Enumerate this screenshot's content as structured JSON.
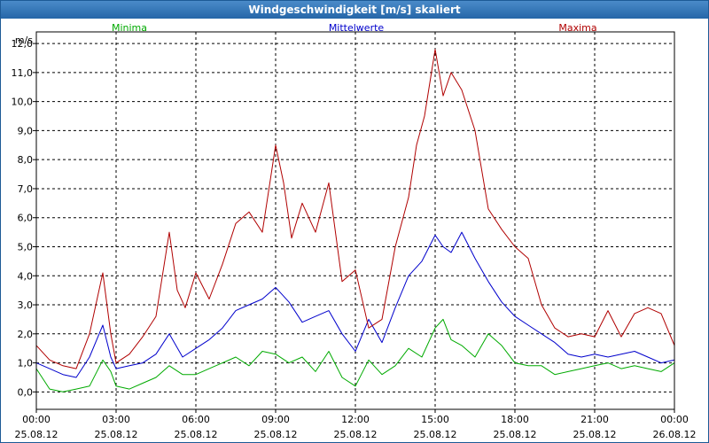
{
  "chart_data": {
    "type": "line",
    "title": "Windgeschwindigkeit [m/s] skaliert",
    "ylabel": "m/s",
    "xlabel": "",
    "ylim": [
      -0.6,
      12.4
    ],
    "xlim": [
      0,
      24
    ],
    "yticks": [
      0,
      1,
      2,
      3,
      4,
      5,
      6,
      7,
      8,
      9,
      10,
      11,
      12
    ],
    "ytick_labels": [
      "0,0",
      "1,0",
      "2,0",
      "3,0",
      "4,0",
      "5,0",
      "6,0",
      "7,0",
      "8,0",
      "9,0",
      "10,0",
      "11,0",
      "12,0"
    ],
    "xticks": [
      0,
      3,
      6,
      9,
      12,
      15,
      18,
      21,
      24
    ],
    "xtick_labels": [
      {
        "time": "00:00",
        "date": "25.08.12"
      },
      {
        "time": "03:00",
        "date": "25.08.12"
      },
      {
        "time": "06:00",
        "date": "25.08.12"
      },
      {
        "time": "09:00",
        "date": "25.08.12"
      },
      {
        "time": "12:00",
        "date": "25.08.12"
      },
      {
        "time": "15:00",
        "date": "25.08.12"
      },
      {
        "time": "18:00",
        "date": "25.08.12"
      },
      {
        "time": "21:00",
        "date": "25.08.12"
      },
      {
        "time": "00:00",
        "date": "26.08.12"
      }
    ],
    "grid": true,
    "legend_position": "top",
    "series": [
      {
        "name": "Minima",
        "color": "#00aa00",
        "x": [
          0,
          0.5,
          1,
          1.5,
          2,
          2.5,
          2.8,
          3,
          3.5,
          4,
          4.5,
          5,
          5.5,
          6,
          6.5,
          7,
          7.5,
          8,
          8.5,
          9,
          9.5,
          10,
          10.5,
          11,
          11.5,
          12,
          12.5,
          13,
          13.5,
          14,
          14.5,
          15,
          15.3,
          15.6,
          16,
          16.5,
          17,
          17.5,
          18,
          18.5,
          19,
          19.5,
          20,
          20.5,
          21,
          21.5,
          22,
          22.5,
          23,
          23.5,
          24
        ],
        "values": [
          0.8,
          0.1,
          0.0,
          0.1,
          0.2,
          1.1,
          0.7,
          0.2,
          0.1,
          0.3,
          0.5,
          0.9,
          0.6,
          0.6,
          0.8,
          1.0,
          1.2,
          0.9,
          1.4,
          1.3,
          1.0,
          1.2,
          0.7,
          1.4,
          0.5,
          0.2,
          1.1,
          0.6,
          0.9,
          1.5,
          1.2,
          2.2,
          2.5,
          1.8,
          1.6,
          1.2,
          2.0,
          1.6,
          1.0,
          0.9,
          0.9,
          0.6,
          0.7,
          0.8,
          0.9,
          1.0,
          0.8,
          0.9,
          0.8,
          0.7,
          1.0
        ]
      },
      {
        "name": "Mittelwerte",
        "color": "#0000cc",
        "x": [
          0,
          0.5,
          1,
          1.5,
          2,
          2.5,
          2.8,
          3,
          3.5,
          4,
          4.5,
          5,
          5.5,
          6,
          6.5,
          7,
          7.5,
          8,
          8.5,
          9,
          9.5,
          10,
          10.5,
          11,
          11.5,
          12,
          12.5,
          13,
          13.5,
          14,
          14.5,
          15,
          15.3,
          15.6,
          16,
          16.5,
          17,
          17.5,
          18,
          18.5,
          19,
          19.5,
          20,
          20.5,
          21,
          21.5,
          22,
          22.5,
          23,
          23.5,
          24
        ],
        "values": [
          1.0,
          0.8,
          0.6,
          0.5,
          1.2,
          2.3,
          1.2,
          0.8,
          0.9,
          1.0,
          1.3,
          2.0,
          1.2,
          1.5,
          1.8,
          2.2,
          2.8,
          3.0,
          3.2,
          3.6,
          3.1,
          2.4,
          2.6,
          2.8,
          2.0,
          1.4,
          2.5,
          1.7,
          2.9,
          4.0,
          4.5,
          5.4,
          5.0,
          4.8,
          5.5,
          4.6,
          3.8,
          3.1,
          2.6,
          2.3,
          2.0,
          1.7,
          1.3,
          1.2,
          1.3,
          1.2,
          1.3,
          1.4,
          1.2,
          1.0,
          1.1
        ]
      },
      {
        "name": "Maxima",
        "color": "#b00000",
        "x": [
          0,
          0.5,
          1,
          1.5,
          2,
          2.5,
          2.8,
          3,
          3.5,
          4,
          4.5,
          5,
          5.3,
          5.6,
          6,
          6.5,
          7,
          7.5,
          8,
          8.5,
          9,
          9.3,
          9.6,
          10,
          10.5,
          11,
          11.5,
          12,
          12.5,
          13,
          13.5,
          14,
          14.3,
          14.6,
          15,
          15.3,
          15.6,
          16,
          16.5,
          17,
          17.5,
          18,
          18.5,
          19,
          19.5,
          20,
          20.5,
          21,
          21.5,
          22,
          22.5,
          23,
          23.5,
          24
        ],
        "values": [
          1.6,
          1.1,
          0.9,
          0.8,
          2.0,
          4.1,
          2.0,
          1.0,
          1.3,
          1.9,
          2.6,
          5.5,
          3.5,
          2.9,
          4.1,
          3.2,
          4.4,
          5.8,
          6.2,
          5.5,
          8.5,
          7.2,
          5.3,
          6.5,
          5.5,
          7.2,
          3.8,
          4.2,
          2.2,
          2.5,
          5.0,
          6.7,
          8.5,
          9.5,
          11.8,
          10.2,
          11.0,
          10.4,
          9.0,
          6.3,
          5.6,
          5.0,
          4.6,
          3.0,
          2.2,
          1.9,
          2.0,
          1.9,
          2.8,
          1.9,
          2.7,
          2.9,
          2.7,
          1.6
        ]
      }
    ]
  }
}
